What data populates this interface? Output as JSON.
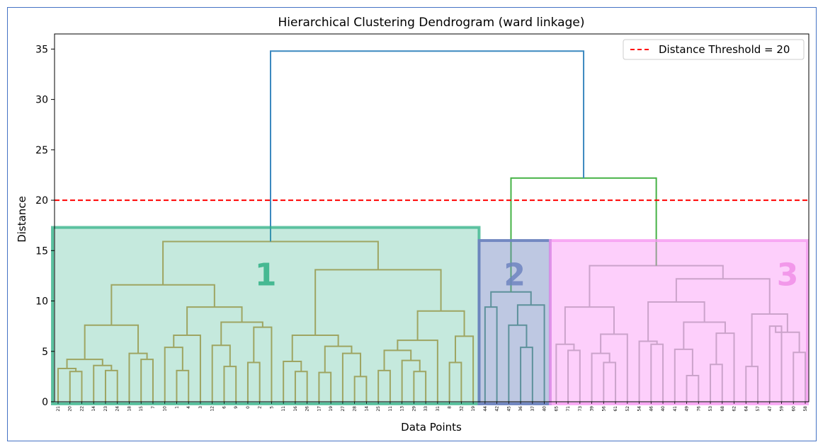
{
  "chart_data": {
    "type": "dendrogram",
    "title": "Hierarchical Clustering Dendrogram (ward linkage)",
    "xlabel": "Data Points",
    "ylabel": "Distance",
    "ylim": [
      0,
      36.5
    ],
    "yticks": [
      0,
      5,
      10,
      15,
      20,
      25,
      30,
      35
    ],
    "threshold": {
      "value": 20,
      "label": "Distance Threshold = 20",
      "color": "#ff0000",
      "style": "dashed"
    },
    "legend_position": "top-right",
    "leaf_count": 64,
    "leaf_labels": [
      "21",
      "20",
      "22",
      "14",
      "23",
      "24",
      "18",
      "15",
      "7",
      "10",
      "1",
      "4",
      "3",
      "12",
      "6",
      "9",
      "0",
      "2",
      "5",
      "11",
      "16",
      "26",
      "17",
      "19",
      "27",
      "28",
      "14",
      "25",
      "11",
      "13",
      "29",
      "33",
      "31",
      "8",
      "32",
      "19",
      "44",
      "42",
      "45",
      "36",
      "37",
      "40",
      "65",
      "71",
      "73",
      "39",
      "56",
      "61",
      "52",
      "54",
      "46",
      "40",
      "41",
      "49",
      "76",
      "53",
      "68",
      "62",
      "64",
      "57",
      "47",
      "59",
      "60",
      "58"
    ],
    "link_colors": {
      "root": "#3b88bf",
      "upper_right": "#45b245",
      "cluster_1": "#c9a155",
      "cluster_2": "#4f9b7f",
      "cluster_3": "#aab4ac"
    },
    "merges": [
      {
        "cluster": 1,
        "height": 15.9
      },
      {
        "cluster": 2,
        "height": 10.9
      },
      {
        "cluster": 3,
        "height": 13.5
      },
      {
        "clusters": "2+3",
        "height": 22.2
      },
      {
        "clusters": "1+2+3",
        "height": 34.8
      }
    ],
    "clusters": [
      {
        "label": "1",
        "color": "#2fb085"
      },
      {
        "label": "2",
        "color": "#6e84bf"
      },
      {
        "label": "3",
        "color": "#f08ee6"
      }
    ]
  }
}
